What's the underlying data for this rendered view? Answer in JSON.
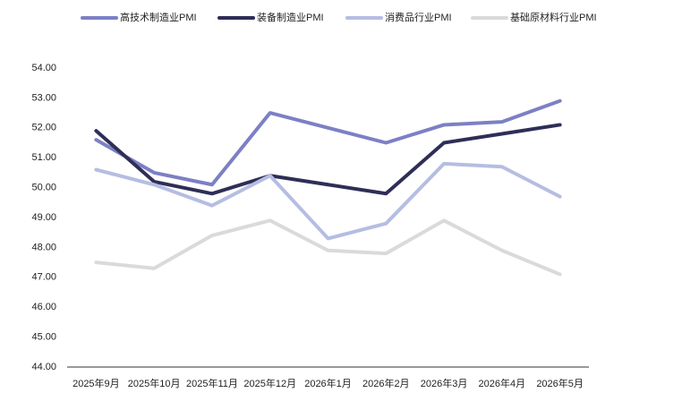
{
  "chart_data": {
    "type": "line",
    "categories": [
      "2025年9月",
      "2025年10月",
      "2025年11月",
      "2025年12月",
      "2026年1月",
      "2026年2月",
      "2026年3月",
      "2026年4月",
      "2026年5月"
    ],
    "series": [
      {
        "name": "高技术制造业PMI",
        "color": "#7c80c4",
        "values": [
          51.6,
          50.5,
          50.1,
          52.5,
          52.0,
          51.5,
          52.1,
          52.2,
          52.9
        ]
      },
      {
        "name": "装备制造业PMI",
        "color": "#2e2e57",
        "values": [
          51.9,
          50.2,
          49.8,
          50.4,
          50.1,
          49.8,
          51.5,
          51.8,
          52.1
        ]
      },
      {
        "name": "消费品行业PMI",
        "color": "#b5bde2",
        "values": [
          50.6,
          50.1,
          49.4,
          50.4,
          48.3,
          48.8,
          50.8,
          50.7,
          49.7
        ]
      },
      {
        "name": "基础原材料行业PMI",
        "color": "#dadada",
        "values": [
          47.5,
          47.3,
          48.4,
          48.9,
          47.9,
          47.8,
          48.9,
          47.9,
          47.1
        ]
      }
    ],
    "ylim": [
      44,
      54
    ],
    "yticks": [
      {
        "value": 44,
        "label": "44.00"
      },
      {
        "value": 45,
        "label": "45.00"
      },
      {
        "value": 46,
        "label": "46.00"
      },
      {
        "value": 47,
        "label": "47.00"
      },
      {
        "value": 48,
        "label": "48.00"
      },
      {
        "value": 49,
        "label": "49.00"
      },
      {
        "value": 50,
        "label": "50.00"
      },
      {
        "value": 51,
        "label": "51.00"
      },
      {
        "value": 52,
        "label": "52.00"
      },
      {
        "value": 53,
        "label": "53.00"
      },
      {
        "value": 54,
        "label": "54.00"
      }
    ],
    "grid": false,
    "legend": "top"
  }
}
